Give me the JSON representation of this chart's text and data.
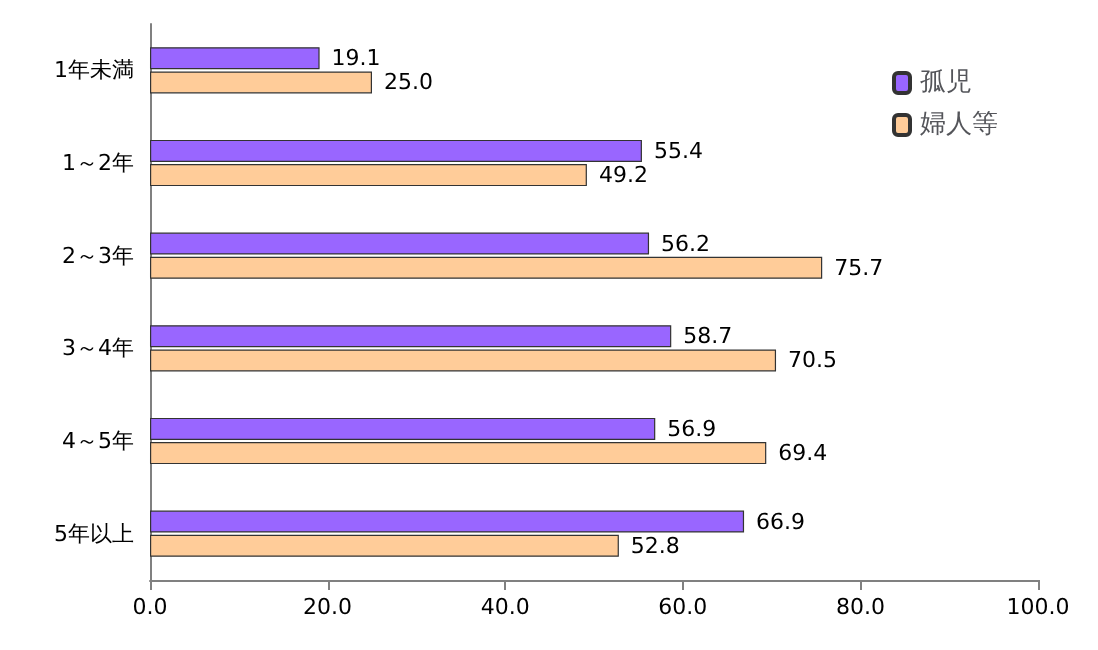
{
  "chart_data": {
    "type": "bar",
    "orientation": "horizontal",
    "categories": [
      "1年未満",
      "1～2年",
      "2～3年",
      "3～4年",
      "4～5年",
      "5年以上"
    ],
    "series": [
      {
        "name": "孤児",
        "color": "#9966ff",
        "values": [
          19.1,
          55.4,
          56.2,
          58.7,
          56.9,
          66.9
        ],
        "value_labels": [
          "19.1",
          "55.4",
          "56.2",
          "58.7",
          "56.9",
          "66.9"
        ]
      },
      {
        "name": "婦人等",
        "color": "#ffcc99",
        "values": [
          25.0,
          49.2,
          75.7,
          70.5,
          69.4,
          52.8
        ],
        "value_labels": [
          "25.0",
          "49.2",
          "75.7",
          "70.5",
          "69.4",
          "52.8"
        ]
      }
    ],
    "xlim": [
      0,
      100
    ],
    "xticks": [
      {
        "value": 0,
        "label": "0.0"
      },
      {
        "value": 20,
        "label": "20.0"
      },
      {
        "value": 40,
        "label": "40.0"
      },
      {
        "value": 60,
        "label": "60.0"
      },
      {
        "value": 80,
        "label": "80.0"
      },
      {
        "value": 100,
        "label": "100.0"
      }
    ],
    "grid": false,
    "legend": "top right"
  }
}
